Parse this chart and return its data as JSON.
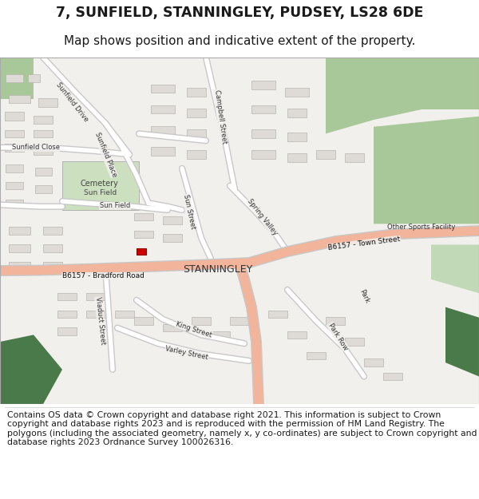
{
  "title_line1": "7, SUNFIELD, STANNINGLEY, PUDSEY, LS28 6DE",
  "title_line2": "Map shows position and indicative extent of the property.",
  "footer_text": "Contains OS data © Crown copyright and database right 2021. This information is subject to Crown copyright and database rights 2023 and is reproduced with the permission of HM Land Registry. The polygons (including the associated geometry, namely x, y co-ordinates) are subject to Crown copyright and database rights 2023 Ordnance Survey 100026316.",
  "map_bg": "#f2f0ed",
  "road_color_main": "#f2b49a",
  "road_color_minor": "#ffffff",
  "road_outline": "#c8c8c8",
  "building_fill": "#dedbd7",
  "building_outline": "#b8b5b1",
  "green_light": "#c2d9b8",
  "green_medium": "#a8c89a",
  "green_dark": "#4a7a4a",
  "cemetery_green": "#cce0c0",
  "marker_color": "#cc0000",
  "white": "#ffffff",
  "text_color": "#1a1a1a",
  "map_border_color": "#aaaaaa",
  "title_fs": 12.5,
  "subtitle_fs": 11,
  "footer_fs": 7.8
}
